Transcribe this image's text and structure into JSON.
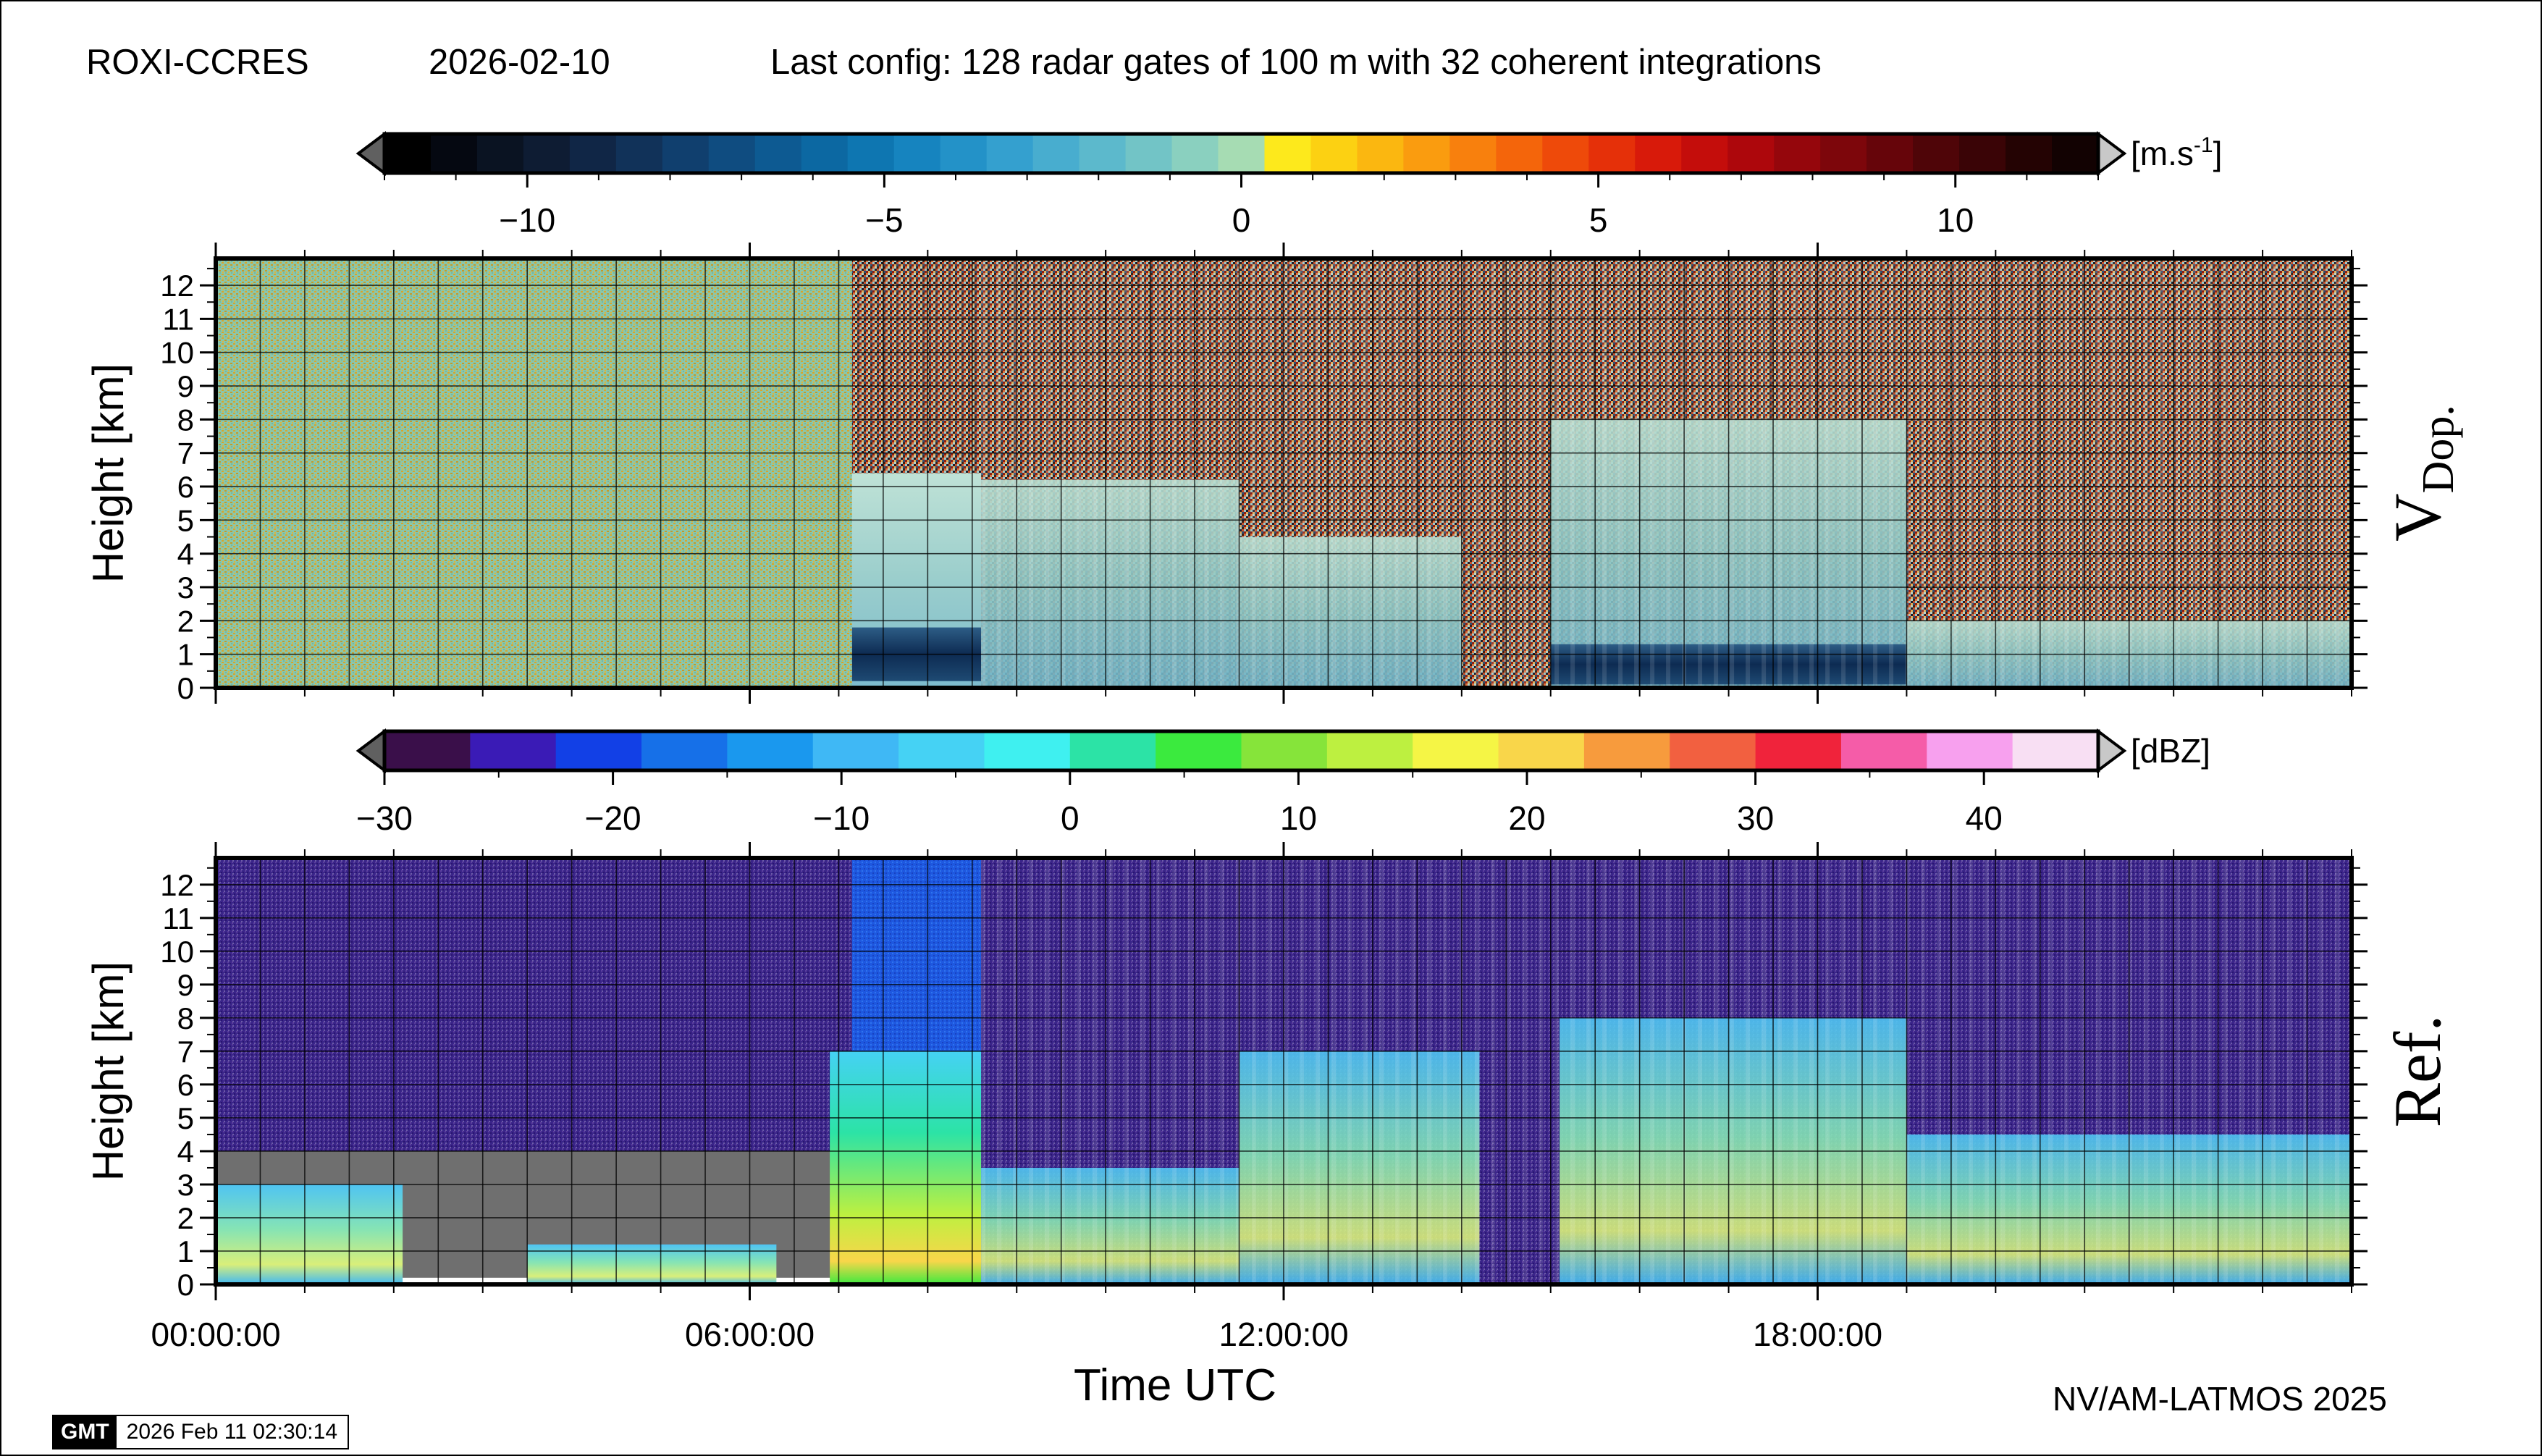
{
  "header": {
    "site": "ROXI-CCRES",
    "date": "2026-02-10",
    "config": "Last config: 128 radar gates of 100 m with 32 coherent integrations"
  },
  "footer": {
    "credit": "NV/AM-LATMOS 2025",
    "logo_text": "GMT",
    "timestamp": "2026 Feb 11 02:30:14"
  },
  "colors": {
    "noise_gray": "#6f6f6f",
    "clearsky_purple": "#2a1a78",
    "doppler_noise_green": "#7fc4a8",
    "doppler_noise_orange": "#d6a21e"
  },
  "chart_data": [
    {
      "type": "heatmap",
      "name": "doppler",
      "panel_label_main": "V",
      "panel_label_sub": "Dop.",
      "ylabel": "Height [km]",
      "xlabel": "",
      "xlim_hours": [
        0,
        24
      ],
      "ylim": [
        0,
        12.8
      ],
      "yticks": [
        0,
        1,
        2,
        3,
        4,
        5,
        6,
        7,
        8,
        9,
        10,
        11,
        12
      ],
      "xticks_hours": [
        0,
        6,
        12,
        18
      ],
      "grid": true,
      "colorbar": {
        "unit_main": "[m.s",
        "unit_sup": "-1",
        "unit_end": "]",
        "range": [
          -12,
          12
        ],
        "ticks": [
          -10,
          -5,
          0,
          5,
          10
        ],
        "tick_labels": [
          "−10",
          "−5",
          "0",
          "5",
          "10"
        ],
        "colors": [
          "#000000",
          "#050811",
          "#0a1322",
          "#0e1c33",
          "#102646",
          "#113259",
          "#103f6e",
          "#0f4c80",
          "#0d5a92",
          "#0c68a2",
          "#0e76b1",
          "#1684bf",
          "#2392c8",
          "#34a0cf",
          "#48adcf",
          "#5cb9cc",
          "#72c4c6",
          "#8ad0bf",
          "#a6dcb3",
          "#fde91c",
          "#fcd112",
          "#fbb710",
          "#fa9c0f",
          "#f8800d",
          "#f4650b",
          "#ee4a0a",
          "#e53009",
          "#d81a0a",
          "#c40d0b",
          "#ad070c",
          "#95060c",
          "#7d060b",
          "#66050a",
          "#4f0508",
          "#3a0406",
          "#240303",
          "#120202"
        ]
      },
      "regions": [
        {
          "kind": "noise",
          "t0": 0.0,
          "t1": 7.15,
          "h0": 0.0,
          "h1": 12.8
        },
        {
          "kind": "speckle",
          "t0": 7.15,
          "t1": 8.6,
          "h0": 6.4,
          "h1": 12.8
        },
        {
          "kind": "cloud_weak",
          "t0": 7.15,
          "t1": 8.6,
          "h0": 0.0,
          "h1": 6.4
        },
        {
          "kind": "downdraft",
          "t0": 7.15,
          "t1": 8.6,
          "h0": 0.2,
          "h1": 1.8
        },
        {
          "kind": "speckle",
          "t0": 8.6,
          "t1": 24.0,
          "h0": 0.0,
          "h1": 12.8
        },
        {
          "kind": "cloud_weak",
          "t0": 8.6,
          "t1": 11.5,
          "h0": 0.0,
          "h1": 6.2
        },
        {
          "kind": "cloud_weak",
          "t0": 11.5,
          "t1": 14.0,
          "h0": 0.0,
          "h1": 4.5
        },
        {
          "kind": "cloud_weak",
          "t0": 15.0,
          "t1": 19.0,
          "h0": 0.0,
          "h1": 8.0
        },
        {
          "kind": "cloud_weak",
          "t0": 19.0,
          "t1": 24.0,
          "h0": 0.0,
          "h1": 2.0
        },
        {
          "kind": "downdraft",
          "t0": 15.0,
          "t1": 19.0,
          "h0": 0.1,
          "h1": 1.3
        }
      ]
    },
    {
      "type": "heatmap",
      "name": "reflectivity",
      "panel_label_main": "Ref.",
      "ylabel": "Height [km]",
      "xlabel": "Time UTC",
      "xlim_hours": [
        0,
        24
      ],
      "ylim": [
        0,
        12.8
      ],
      "yticks": [
        0,
        1,
        2,
        3,
        4,
        5,
        6,
        7,
        8,
        9,
        10,
        11,
        12
      ],
      "xticks_hours": [
        0,
        6,
        12,
        18
      ],
      "xtick_labels": [
        "00:00:00",
        "06:00:00",
        "12:00:00",
        "18:00:00"
      ],
      "grid": true,
      "colorbar": {
        "unit_main": "[dBZ]",
        "range": [
          -30,
          45
        ],
        "ticks": [
          -30,
          -20,
          -10,
          0,
          10,
          20,
          30,
          40
        ],
        "tick_labels": [
          "−30",
          "−20",
          "−10",
          "0",
          "10",
          "20",
          "30",
          "40"
        ],
        "colors": [
          "#3a0f4a",
          "#3a1bb6",
          "#1240e6",
          "#1670e8",
          "#1a98ee",
          "#3fb8f5",
          "#45d2f4",
          "#3ff0f0",
          "#2ce3a6",
          "#3bea3e",
          "#86e43a",
          "#bdf040",
          "#f5f545",
          "#f9d64a",
          "#f79b3d",
          "#f26040",
          "#f0233b",
          "#f55ca8",
          "#f7a0ee",
          "#f8dff3"
        ]
      },
      "regions": [
        {
          "kind": "clear",
          "t0": 0.0,
          "t1": 7.15,
          "h0": 4.0,
          "h1": 12.8
        },
        {
          "kind": "nodata",
          "t0": 0.0,
          "t1": 7.15,
          "h0": 0.2,
          "h1": 4.0
        },
        {
          "kind": "lowcloud",
          "t0": 0.0,
          "t1": 2.1,
          "h0": 0.0,
          "h1": 3.0
        },
        {
          "kind": "lowcloud",
          "t0": 3.5,
          "t1": 6.3,
          "h0": 0.0,
          "h1": 1.2
        },
        {
          "kind": "bluefield",
          "t0": 7.15,
          "t1": 8.6,
          "h0": 6.5,
          "h1": 12.8
        },
        {
          "kind": "convective",
          "t0": 6.9,
          "t1": 8.7,
          "h0": 0.0,
          "h1": 7.0
        },
        {
          "kind": "clear",
          "t0": 8.6,
          "t1": 24.0,
          "h0": 0.0,
          "h1": 12.8
        },
        {
          "kind": "cloud",
          "t0": 8.6,
          "t1": 11.5,
          "h0": 0.0,
          "h1": 3.5
        },
        {
          "kind": "cloud",
          "t0": 11.5,
          "t1": 14.2,
          "h0": 0.0,
          "h1": 7.0
        },
        {
          "kind": "cloud",
          "t0": 15.1,
          "t1": 19.0,
          "h0": 0.0,
          "h1": 8.0
        },
        {
          "kind": "cloud",
          "t0": 19.0,
          "t1": 24.0,
          "h0": 0.0,
          "h1": 4.5
        }
      ]
    }
  ]
}
